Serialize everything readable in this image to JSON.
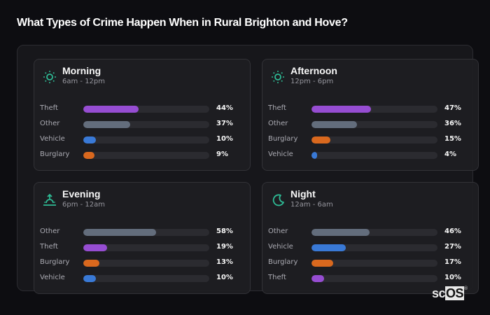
{
  "header": {
    "title": "What Types of Crime Happen When in Rural Brighton and Hove?"
  },
  "colors": {
    "Theft": "#9b4fd8",
    "Other": "#667080",
    "Vehicle": "#3b7ddd",
    "Burglary": "#e06b1f",
    "icon_accent": "#2fc199"
  },
  "cards": [
    {
      "title": "Morning",
      "subtitle": "6am - 12pm",
      "icon": "sun-icon",
      "rows": [
        {
          "label": "Theft",
          "value": 44,
          "display": "44%"
        },
        {
          "label": "Other",
          "value": 37,
          "display": "37%"
        },
        {
          "label": "Vehicle",
          "value": 10,
          "display": "10%"
        },
        {
          "label": "Burglary",
          "value": 9,
          "display": "9%"
        }
      ]
    },
    {
      "title": "Afternoon",
      "subtitle": "12pm - 6pm",
      "icon": "sun-icon",
      "rows": [
        {
          "label": "Theft",
          "value": 47,
          "display": "47%"
        },
        {
          "label": "Other",
          "value": 36,
          "display": "36%"
        },
        {
          "label": "Burglary",
          "value": 15,
          "display": "15%"
        },
        {
          "label": "Vehicle",
          "value": 4,
          "display": "4%"
        }
      ]
    },
    {
      "title": "Evening",
      "subtitle": "6pm - 12am",
      "icon": "sunset-icon",
      "rows": [
        {
          "label": "Other",
          "value": 58,
          "display": "58%"
        },
        {
          "label": "Theft",
          "value": 19,
          "display": "19%"
        },
        {
          "label": "Burglary",
          "value": 13,
          "display": "13%"
        },
        {
          "label": "Vehicle",
          "value": 10,
          "display": "10%"
        }
      ]
    },
    {
      "title": "Night",
      "subtitle": "12am - 6am",
      "icon": "moon-icon",
      "rows": [
        {
          "label": "Other",
          "value": 46,
          "display": "46%"
        },
        {
          "label": "Vehicle",
          "value": 27,
          "display": "27%"
        },
        {
          "label": "Burglary",
          "value": 17,
          "display": "17%"
        },
        {
          "label": "Theft",
          "value": 10,
          "display": "10%"
        }
      ]
    }
  ],
  "logo": {
    "prefix": "sc",
    "highlight": "OS",
    "mark": "®"
  },
  "chart_data": {
    "type": "bar",
    "title": "What Types of Crime Happen When in Rural Brighton and Hove?",
    "orientation": "horizontal",
    "categories": [
      "Morning (6am - 12pm)",
      "Afternoon (12pm - 6pm)",
      "Evening (6pm - 12am)",
      "Night (12am - 6am)"
    ],
    "series": [
      {
        "name": "Theft",
        "values": [
          44,
          47,
          19,
          10
        ]
      },
      {
        "name": "Other",
        "values": [
          37,
          36,
          58,
          46
        ]
      },
      {
        "name": "Vehicle",
        "values": [
          10,
          4,
          10,
          27
        ]
      },
      {
        "name": "Burglary",
        "values": [
          9,
          15,
          13,
          17
        ]
      }
    ],
    "xlabel": "",
    "ylabel": "",
    "xlim": [
      0,
      100
    ],
    "unit": "%",
    "grid": false,
    "legend": "none (inline labels per panel)"
  }
}
